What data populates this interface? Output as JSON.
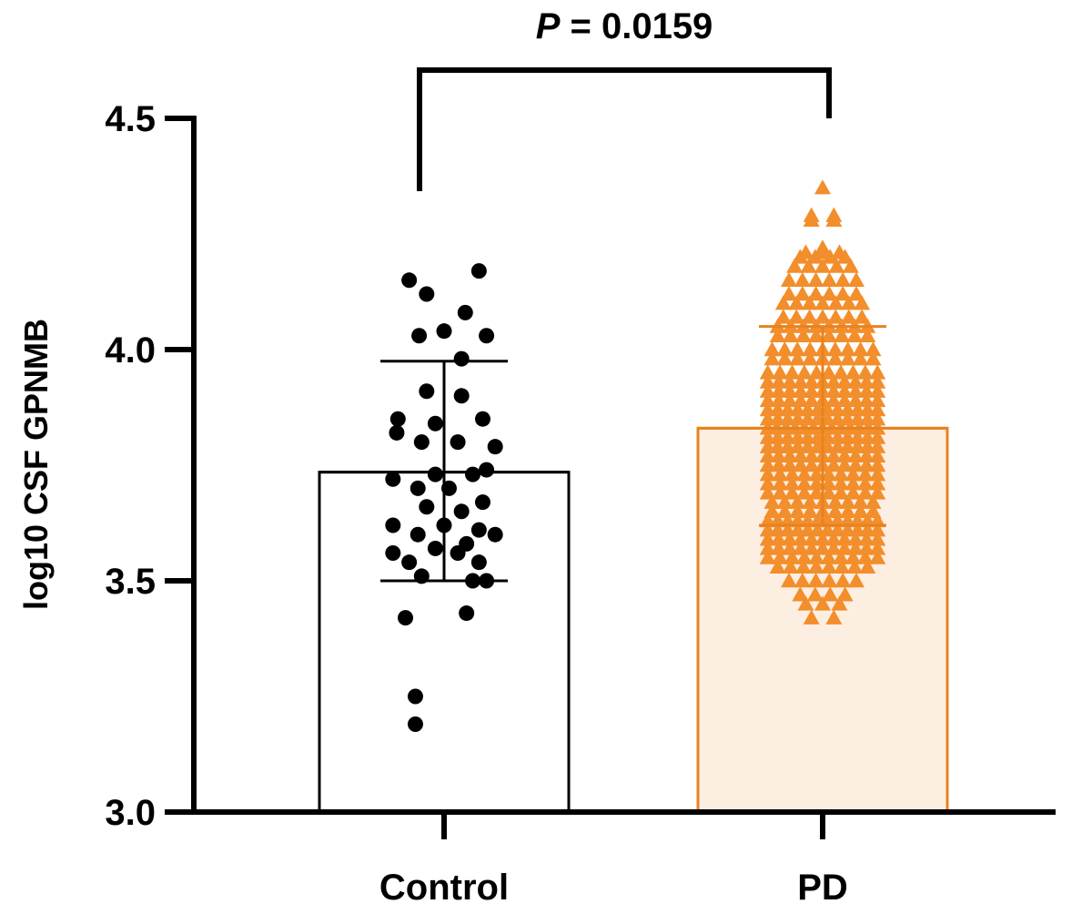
{
  "chart_data": {
    "type": "bar",
    "ylabel": "log10 CSF GPNMB",
    "ylim": [
      3.0,
      4.5
    ],
    "yticks": [
      "3.0",
      "3.5",
      "4.0",
      "4.5"
    ],
    "categories": [
      "Control",
      "PD"
    ],
    "annotation": {
      "prefix": "P",
      "text": " = 0.0159"
    },
    "colors": {
      "control_bar_fill": "#ffffff",
      "control_bar_edge": "#000000",
      "control_point": "#000000",
      "pd_bar_fill": "#fdeee2",
      "pd_bar_edge": "#e8821e",
      "pd_point": "#f28e2b"
    },
    "series": [
      {
        "category": "Control",
        "marker": "circle",
        "mean": 3.735,
        "sd_upper": 3.975,
        "sd_lower": 3.5,
        "points": [
          {
            "x": -0.28,
            "y": 4.15
          },
          {
            "x": 0.28,
            "y": 4.17
          },
          {
            "x": -0.14,
            "y": 4.12
          },
          {
            "x": 0.17,
            "y": 4.08
          },
          {
            "x": 0.0,
            "y": 4.04
          },
          {
            "x": -0.2,
            "y": 4.03
          },
          {
            "x": 0.34,
            "y": 4.03
          },
          {
            "x": 0.14,
            "y": 3.98
          },
          {
            "x": -0.14,
            "y": 3.91
          },
          {
            "x": 0.14,
            "y": 3.9
          },
          {
            "x": -0.37,
            "y": 3.85
          },
          {
            "x": -0.07,
            "y": 3.84
          },
          {
            "x": 0.31,
            "y": 3.85
          },
          {
            "x": -0.38,
            "y": 3.82
          },
          {
            "x": -0.18,
            "y": 3.8
          },
          {
            "x": 0.11,
            "y": 3.8
          },
          {
            "x": 0.41,
            "y": 3.79
          },
          {
            "x": -0.41,
            "y": 3.72
          },
          {
            "x": -0.07,
            "y": 3.73
          },
          {
            "x": 0.23,
            "y": 3.73
          },
          {
            "x": 0.34,
            "y": 3.74
          },
          {
            "x": -0.21,
            "y": 3.7
          },
          {
            "x": 0.04,
            "y": 3.7
          },
          {
            "x": 0.31,
            "y": 3.67
          },
          {
            "x": -0.14,
            "y": 3.66
          },
          {
            "x": 0.14,
            "y": 3.65
          },
          {
            "x": -0.41,
            "y": 3.62
          },
          {
            "x": -0.21,
            "y": 3.6
          },
          {
            "x": 0.0,
            "y": 3.62
          },
          {
            "x": 0.28,
            "y": 3.61
          },
          {
            "x": 0.41,
            "y": 3.6
          },
          {
            "x": 0.18,
            "y": 3.58
          },
          {
            "x": -0.41,
            "y": 3.56
          },
          {
            "x": -0.07,
            "y": 3.57
          },
          {
            "x": 0.11,
            "y": 3.56
          },
          {
            "x": -0.28,
            "y": 3.54
          },
          {
            "x": 0.28,
            "y": 3.54
          },
          {
            "x": -0.18,
            "y": 3.51
          },
          {
            "x": 0.23,
            "y": 3.5
          },
          {
            "x": 0.34,
            "y": 3.5
          },
          {
            "x": -0.31,
            "y": 3.42
          },
          {
            "x": 0.18,
            "y": 3.43
          },
          {
            "x": -0.23,
            "y": 3.25
          },
          {
            "x": -0.23,
            "y": 3.19
          }
        ]
      },
      {
        "category": "PD",
        "marker": "triangle",
        "mean": 3.83,
        "sd_upper": 4.05,
        "sd_lower": 3.62
      }
    ]
  }
}
